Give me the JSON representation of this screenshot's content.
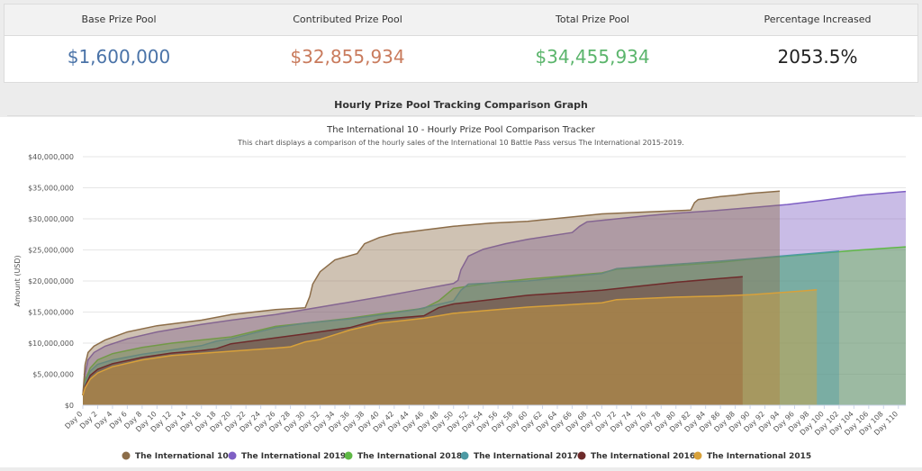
{
  "stats": [
    {
      "label": "Base Prize Pool",
      "value": "$1,600,000",
      "color": "#4a73a8"
    },
    {
      "label": "Contributed Prize Pool",
      "value": "$32,855,934",
      "color": "#c97b5d"
    },
    {
      "label": "Total Prize Pool",
      "value": "$34,455,934",
      "color": "#5bb56c"
    },
    {
      "label": "Percentage Increased",
      "value": "2053.5%",
      "color": "#222222"
    }
  ],
  "section_title": "Hourly Prize Pool Tracking Comparison Graph",
  "menu_icon": "hamburger-menu-icon",
  "chart_data": {
    "type": "area",
    "title": "The International 10 - Hourly Prize Pool Comparison Tracker",
    "subtitle": "This chart displays a comparison of the hourly sales of the International 10 Battle Pass versus The International 2015-2019.",
    "ylabel": "Amount (USD)",
    "xlabel": "",
    "ylim": [
      0,
      40000000
    ],
    "yticks": [
      0,
      5000000,
      10000000,
      15000000,
      20000000,
      25000000,
      30000000,
      35000000,
      40000000
    ],
    "ytick_labels": [
      "$0",
      "$5,000,000",
      "$10,000,000",
      "$15,000,000",
      "$20,000,000",
      "$25,000,000",
      "$30,000,000",
      "$35,000,000",
      "$40,000,000"
    ],
    "xlim": [
      0,
      111
    ],
    "xticks": [
      0,
      2,
      4,
      6,
      8,
      10,
      12,
      14,
      16,
      18,
      20,
      22,
      24,
      26,
      28,
      30,
      32,
      34,
      36,
      38,
      40,
      42,
      44,
      46,
      48,
      50,
      52,
      54,
      56,
      58,
      60,
      62,
      64,
      66,
      68,
      70,
      72,
      74,
      76,
      78,
      80,
      82,
      84,
      86,
      88,
      90,
      92,
      94,
      96,
      98,
      100,
      102,
      104,
      106,
      108,
      110
    ],
    "xtick_labels": [
      "Day 0",
      "Day 2",
      "Day 4",
      "Day 6",
      "Day 8",
      "Day 10",
      "Day 12",
      "Day 14",
      "Day 16",
      "Day 18",
      "Day 20",
      "Day 22",
      "Day 24",
      "Day 26",
      "Day 28",
      "Day 30",
      "Day 32",
      "Day 34",
      "Day 36",
      "Day 38",
      "Day 40",
      "Day 42",
      "Day 44",
      "Day 46",
      "Day 48",
      "Day 50",
      "Day 52",
      "Day 54",
      "Day 56",
      "Day 58",
      "Day 60",
      "Day 62",
      "Day 64",
      "Day 66",
      "Day 68",
      "Day 70",
      "Day 72",
      "Day 74",
      "Day 76",
      "Day 78",
      "Day 80",
      "Day 82",
      "Day 84",
      "Day 86",
      "Day 88",
      "Day 90",
      "Day 92",
      "Day 94",
      "Day 96",
      "Day 98",
      "Day 100",
      "Day 102",
      "Day 104",
      "Day 106",
      "Day 108",
      "Day 110"
    ],
    "grid": true,
    "legend_position": "bottom",
    "series": [
      {
        "name": "The International 2019",
        "color": "#7e5fc4",
        "x": [
          0,
          0.3,
          0.7,
          1.5,
          3,
          6,
          10,
          16,
          20,
          26,
          30,
          32,
          40,
          45,
          50,
          50.6,
          51,
          52,
          54,
          57,
          60,
          66,
          67,
          68,
          72,
          76,
          80,
          85,
          90,
          95,
          100,
          105,
          110,
          111
        ],
        "y": [
          1600000,
          5000000,
          7300000,
          8500000,
          9500000,
          10700000,
          11800000,
          13000000,
          13700000,
          14600000,
          15400000,
          15800000,
          17400000,
          18500000,
          19600000,
          20100000,
          21800000,
          24000000,
          25100000,
          26000000,
          26700000,
          27800000,
          28800000,
          29500000,
          30000000,
          30500000,
          30900000,
          31300000,
          31800000,
          32300000,
          33000000,
          33800000,
          34300000,
          34400000
        ]
      },
      {
        "name": "The International 2018",
        "color": "#5fb846",
        "x": [
          0,
          0.3,
          1,
          2,
          4,
          8,
          12,
          20,
          26,
          30,
          36,
          40,
          46,
          48,
          50,
          55,
          60,
          70,
          72,
          80,
          86,
          90,
          95,
          100,
          105,
          111
        ],
        "y": [
          1600000,
          4000000,
          6000000,
          7300000,
          8300000,
          9300000,
          10000000,
          11000000,
          12700000,
          13200000,
          14000000,
          14700000,
          15600000,
          16800000,
          18800000,
          19700000,
          20300000,
          21300000,
          21900000,
          22500000,
          23000000,
          23500000,
          24000000,
          24500000,
          25000000,
          25500000
        ]
      },
      {
        "name": "The International 2017",
        "color": "#4d9aa4",
        "x": [
          0,
          0.3,
          1,
          2,
          4,
          8,
          12,
          16,
          18,
          20,
          26,
          30,
          36,
          40,
          45,
          50,
          51,
          52,
          60,
          70,
          72,
          80,
          86,
          90,
          95,
          102
        ],
        "y": [
          1600000,
          3500000,
          5500000,
          6600000,
          7300000,
          8200000,
          8900000,
          9600000,
          10300000,
          10700000,
          12500000,
          13200000,
          13900000,
          14500000,
          15400000,
          16800000,
          18500000,
          19500000,
          20000000,
          21200000,
          22000000,
          22700000,
          23200000,
          23600000,
          24100000,
          24800000
        ]
      },
      {
        "name": "The International 10",
        "color": "#8c6d49",
        "x": [
          0,
          0.3,
          0.7,
          1.5,
          3,
          6,
          10,
          16,
          20,
          26,
          30,
          30.6,
          31,
          32,
          34,
          37,
          38,
          40,
          42,
          46,
          50,
          55,
          60,
          66,
          70,
          76,
          80,
          82,
          82.5,
          83,
          86,
          88,
          90,
          94
        ],
        "y": [
          1600000,
          6500000,
          8500000,
          9500000,
          10500000,
          11800000,
          12800000,
          13700000,
          14600000,
          15400000,
          15700000,
          17500000,
          19500000,
          21500000,
          23400000,
          24400000,
          26000000,
          27000000,
          27600000,
          28200000,
          28800000,
          29300000,
          29600000,
          30300000,
          30800000,
          31100000,
          31300000,
          31400000,
          32600000,
          33100000,
          33600000,
          33800000,
          34100000,
          34455934
        ]
      },
      {
        "name": "The International 2016",
        "color": "#6e2b2b",
        "x": [
          0,
          0.3,
          1,
          2,
          4,
          8,
          12,
          16,
          18,
          20,
          30,
          36,
          40,
          46,
          48,
          50,
          55,
          60,
          70,
          80,
          85,
          89
        ],
        "y": [
          1600000,
          3000000,
          4800000,
          5800000,
          6700000,
          7700000,
          8400000,
          8800000,
          9100000,
          9900000,
          11500000,
          12500000,
          13800000,
          14400000,
          15700000,
          16300000,
          17000000,
          17700000,
          18500000,
          19800000,
          20300000,
          20700000
        ]
      },
      {
        "name": "The International 2015",
        "color": "#d8a13a",
        "x": [
          0,
          0.3,
          1,
          2,
          4,
          8,
          12,
          20,
          26,
          28,
          30,
          32,
          36,
          40,
          46,
          50,
          55,
          60,
          70,
          72,
          80,
          86,
          90,
          95,
          99
        ],
        "y": [
          1600000,
          2800000,
          4200000,
          5200000,
          6200000,
          7300000,
          8000000,
          8700000,
          9200000,
          9400000,
          10200000,
          10600000,
          12100000,
          13200000,
          14000000,
          14800000,
          15300000,
          15800000,
          16500000,
          17000000,
          17400000,
          17600000,
          17800000,
          18200000,
          18600000
        ]
      }
    ]
  }
}
